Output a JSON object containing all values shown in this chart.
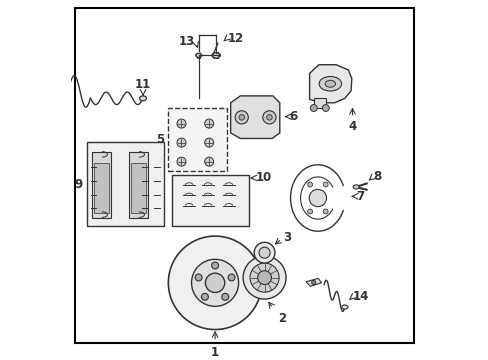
{
  "background_color": "#ffffff",
  "border_color": "#000000",
  "fig_width": 4.89,
  "fig_height": 3.6,
  "dpi": 100,
  "dgray": "#333333"
}
